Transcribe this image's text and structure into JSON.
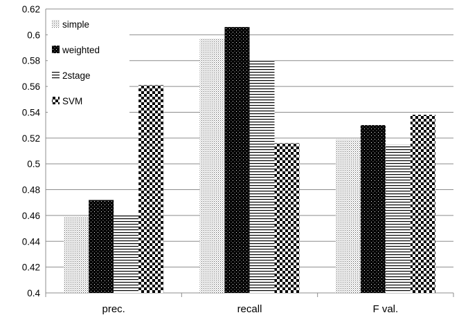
{
  "chart_data": {
    "type": "bar",
    "title": "",
    "xlabel": "",
    "ylabel": "",
    "categories": [
      "prec.",
      "recall",
      "F val."
    ],
    "series": [
      {
        "name": "simple",
        "values": [
          0.459,
          0.597,
          0.519
        ],
        "pattern": "dots-fine"
      },
      {
        "name": "weighted",
        "values": [
          0.472,
          0.606,
          0.53
        ],
        "pattern": "dots-black"
      },
      {
        "name": "2stage",
        "values": [
          0.461,
          0.581,
          0.515
        ],
        "pattern": "horizontal-lines"
      },
      {
        "name": "SVM",
        "values": [
          0.561,
          0.516,
          0.538
        ],
        "pattern": "checkerboard"
      }
    ],
    "ylim": [
      0.4,
      0.62
    ],
    "yticks": [
      "0.4",
      "0.42",
      "0.44",
      "0.46",
      "0.48",
      "0.5",
      "0.52",
      "0.54",
      "0.56",
      "0.58",
      "0.6",
      "0.62"
    ],
    "grid": true,
    "legend": "top-left",
    "colors": {
      "gridline": "#8c8c8c",
      "ink": "#000000",
      "background": "#ffffff"
    }
  }
}
